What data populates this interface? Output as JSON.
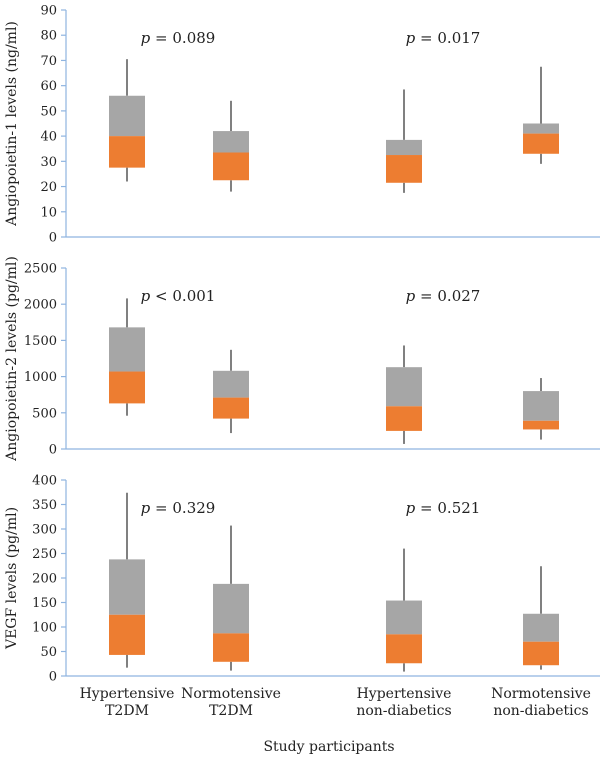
{
  "colors": {
    "lower_box": "#ED7D31",
    "upper_box": "#A6A6A6",
    "axis": "#8FB4E0",
    "whisker": "#808080"
  },
  "x_axis": {
    "title": "Study participants",
    "categories": [
      [
        "Hypertensive",
        "T2DM"
      ],
      [
        "Normotensive",
        "T2DM"
      ],
      [
        "Hypertensive",
        "non-diabetics"
      ],
      [
        "Normotensive",
        "non-diabetics"
      ]
    ]
  },
  "chart_data": [
    {
      "type": "box",
      "ylabel": "Angiopoietin-1 levels (ng/ml)",
      "ylim": [
        0,
        90
      ],
      "yticks": [
        0,
        10,
        20,
        30,
        40,
        50,
        60,
        70,
        80,
        90
      ],
      "categories": [
        "Hypertensive T2DM",
        "Normotensive T2DM",
        "Hypertensive non-diabetics",
        "Normotensive non-diabetics"
      ],
      "boxes": [
        {
          "min": 22,
          "q1": 27.5,
          "median": 40,
          "q3": 56,
          "max": 70.5
        },
        {
          "min": 18,
          "q1": 22.5,
          "median": 33.5,
          "q3": 42,
          "max": 54
        },
        {
          "min": 17.5,
          "q1": 21.5,
          "median": 32.5,
          "q3": 38.5,
          "max": 58.5
        },
        {
          "min": 29,
          "q1": 33,
          "median": 41,
          "q3": 45,
          "max": 67.5
        }
      ],
      "annotations": [
        {
          "text": "p",
          "suffix": " = 0.089",
          "group": 0
        },
        {
          "text": "p",
          "suffix": " = 0.017",
          "group": 1
        }
      ]
    },
    {
      "type": "box",
      "ylabel": "Angiopoietin-2 levels (pg/ml)",
      "ylim": [
        0,
        2500
      ],
      "yticks": [
        0,
        500,
        1000,
        1500,
        2000,
        2500
      ],
      "categories": [
        "Hypertensive T2DM",
        "Normotensive T2DM",
        "Hypertensive non-diabetics",
        "Normotensive non-diabetics"
      ],
      "boxes": [
        {
          "min": 460,
          "q1": 630,
          "median": 1070,
          "q3": 1680,
          "max": 2080
        },
        {
          "min": 220,
          "q1": 420,
          "median": 710,
          "q3": 1080,
          "max": 1370
        },
        {
          "min": 70,
          "q1": 250,
          "median": 590,
          "q3": 1130,
          "max": 1430
        },
        {
          "min": 130,
          "q1": 270,
          "median": 390,
          "q3": 800,
          "max": 980
        }
      ],
      "annotations": [
        {
          "text": "p",
          "suffix": " < 0.001",
          "group": 0
        },
        {
          "text": "p",
          "suffix": " = 0.027",
          "group": 1
        }
      ]
    },
    {
      "type": "box",
      "ylabel": "VEGF levels (pg/ml)",
      "ylim": [
        0,
        400
      ],
      "yticks": [
        0,
        50,
        100,
        150,
        200,
        250,
        300,
        350,
        400
      ],
      "categories": [
        "Hypertensive T2DM",
        "Normotensive T2DM",
        "Hypertensive non-diabetics",
        "Normotensive non-diabetics"
      ],
      "boxes": [
        {
          "min": 17,
          "q1": 43,
          "median": 125,
          "q3": 238,
          "max": 374
        },
        {
          "min": 11,
          "q1": 29,
          "median": 87,
          "q3": 188,
          "max": 307
        },
        {
          "min": 9,
          "q1": 26,
          "median": 85,
          "q3": 154,
          "max": 260
        },
        {
          "min": 13,
          "q1": 22,
          "median": 70,
          "q3": 127,
          "max": 224
        }
      ],
      "annotations": [
        {
          "text": "p",
          "suffix": " = 0.329",
          "group": 0
        },
        {
          "text": "p",
          "suffix": " = 0.521",
          "group": 1
        }
      ]
    }
  ]
}
